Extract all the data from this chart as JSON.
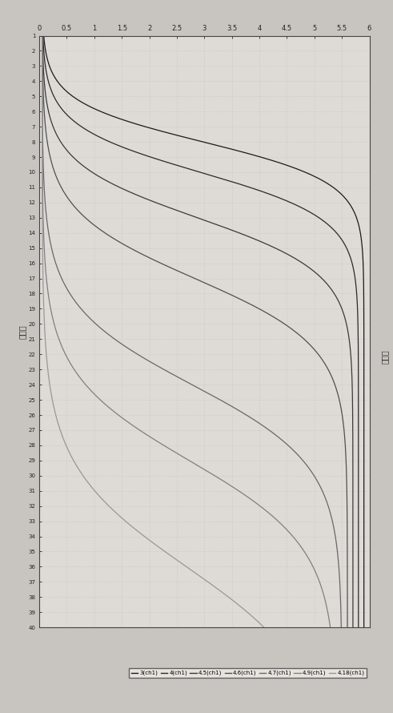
{
  "ylabel_left": "循环数",
  "ylabel_right": "荧光值",
  "xlim_fluor": [
    0,
    6
  ],
  "ylim_cycles": [
    1,
    40
  ],
  "yticks_fluor": [
    0,
    0.5,
    1,
    1.5,
    2,
    2.5,
    3,
    3.5,
    4,
    4.5,
    5,
    5.5,
    6
  ],
  "xticks_cycles": [
    1,
    2,
    3,
    4,
    5,
    6,
    7,
    8,
    9,
    10,
    11,
    12,
    13,
    14,
    15,
    16,
    17,
    18,
    19,
    20,
    21,
    22,
    23,
    24,
    25,
    26,
    27,
    28,
    29,
    30,
    31,
    32,
    33,
    34,
    35,
    36,
    37,
    38,
    39,
    40
  ],
  "background_color": "#c8c4c0",
  "plot_bg_color": "#dedad6",
  "grid_color": "#c0bcb8",
  "legend_labels": [
    "3(ch1)",
    "4(ch1)",
    "4.5(ch1)",
    "4.6(ch1)",
    "4.7(ch1)",
    "4.9(ch1)",
    "4.18(ch1)"
  ],
  "line_colors": [
    "#1a1a1a",
    "#2a2a2a",
    "#3a3a3a",
    "#505050",
    "#686868",
    "#808080",
    "#989898"
  ],
  "curves": [
    {
      "label": "3(ch1)",
      "inflection": 8,
      "lower": 0.05,
      "upper": 5.9,
      "k": 0.75
    },
    {
      "label": "4(ch1)",
      "inflection": 10,
      "lower": 0.05,
      "upper": 5.8,
      "k": 0.65
    },
    {
      "label": "4.5(ch1)",
      "inflection": 13,
      "lower": 0.05,
      "upper": 5.7,
      "k": 0.55
    },
    {
      "label": "4.6(ch1)",
      "inflection": 17,
      "lower": 0.05,
      "upper": 5.6,
      "k": 0.45
    },
    {
      "label": "4.7(ch1)",
      "inflection": 24,
      "lower": 0.05,
      "upper": 5.5,
      "k": 0.38
    },
    {
      "label": "4.9(ch1)",
      "inflection": 29,
      "lower": 0.05,
      "upper": 5.4,
      "k": 0.35
    },
    {
      "label": "4.18(ch1)",
      "inflection": 36,
      "lower": 0.05,
      "upper": 5.3,
      "k": 0.3
    }
  ]
}
